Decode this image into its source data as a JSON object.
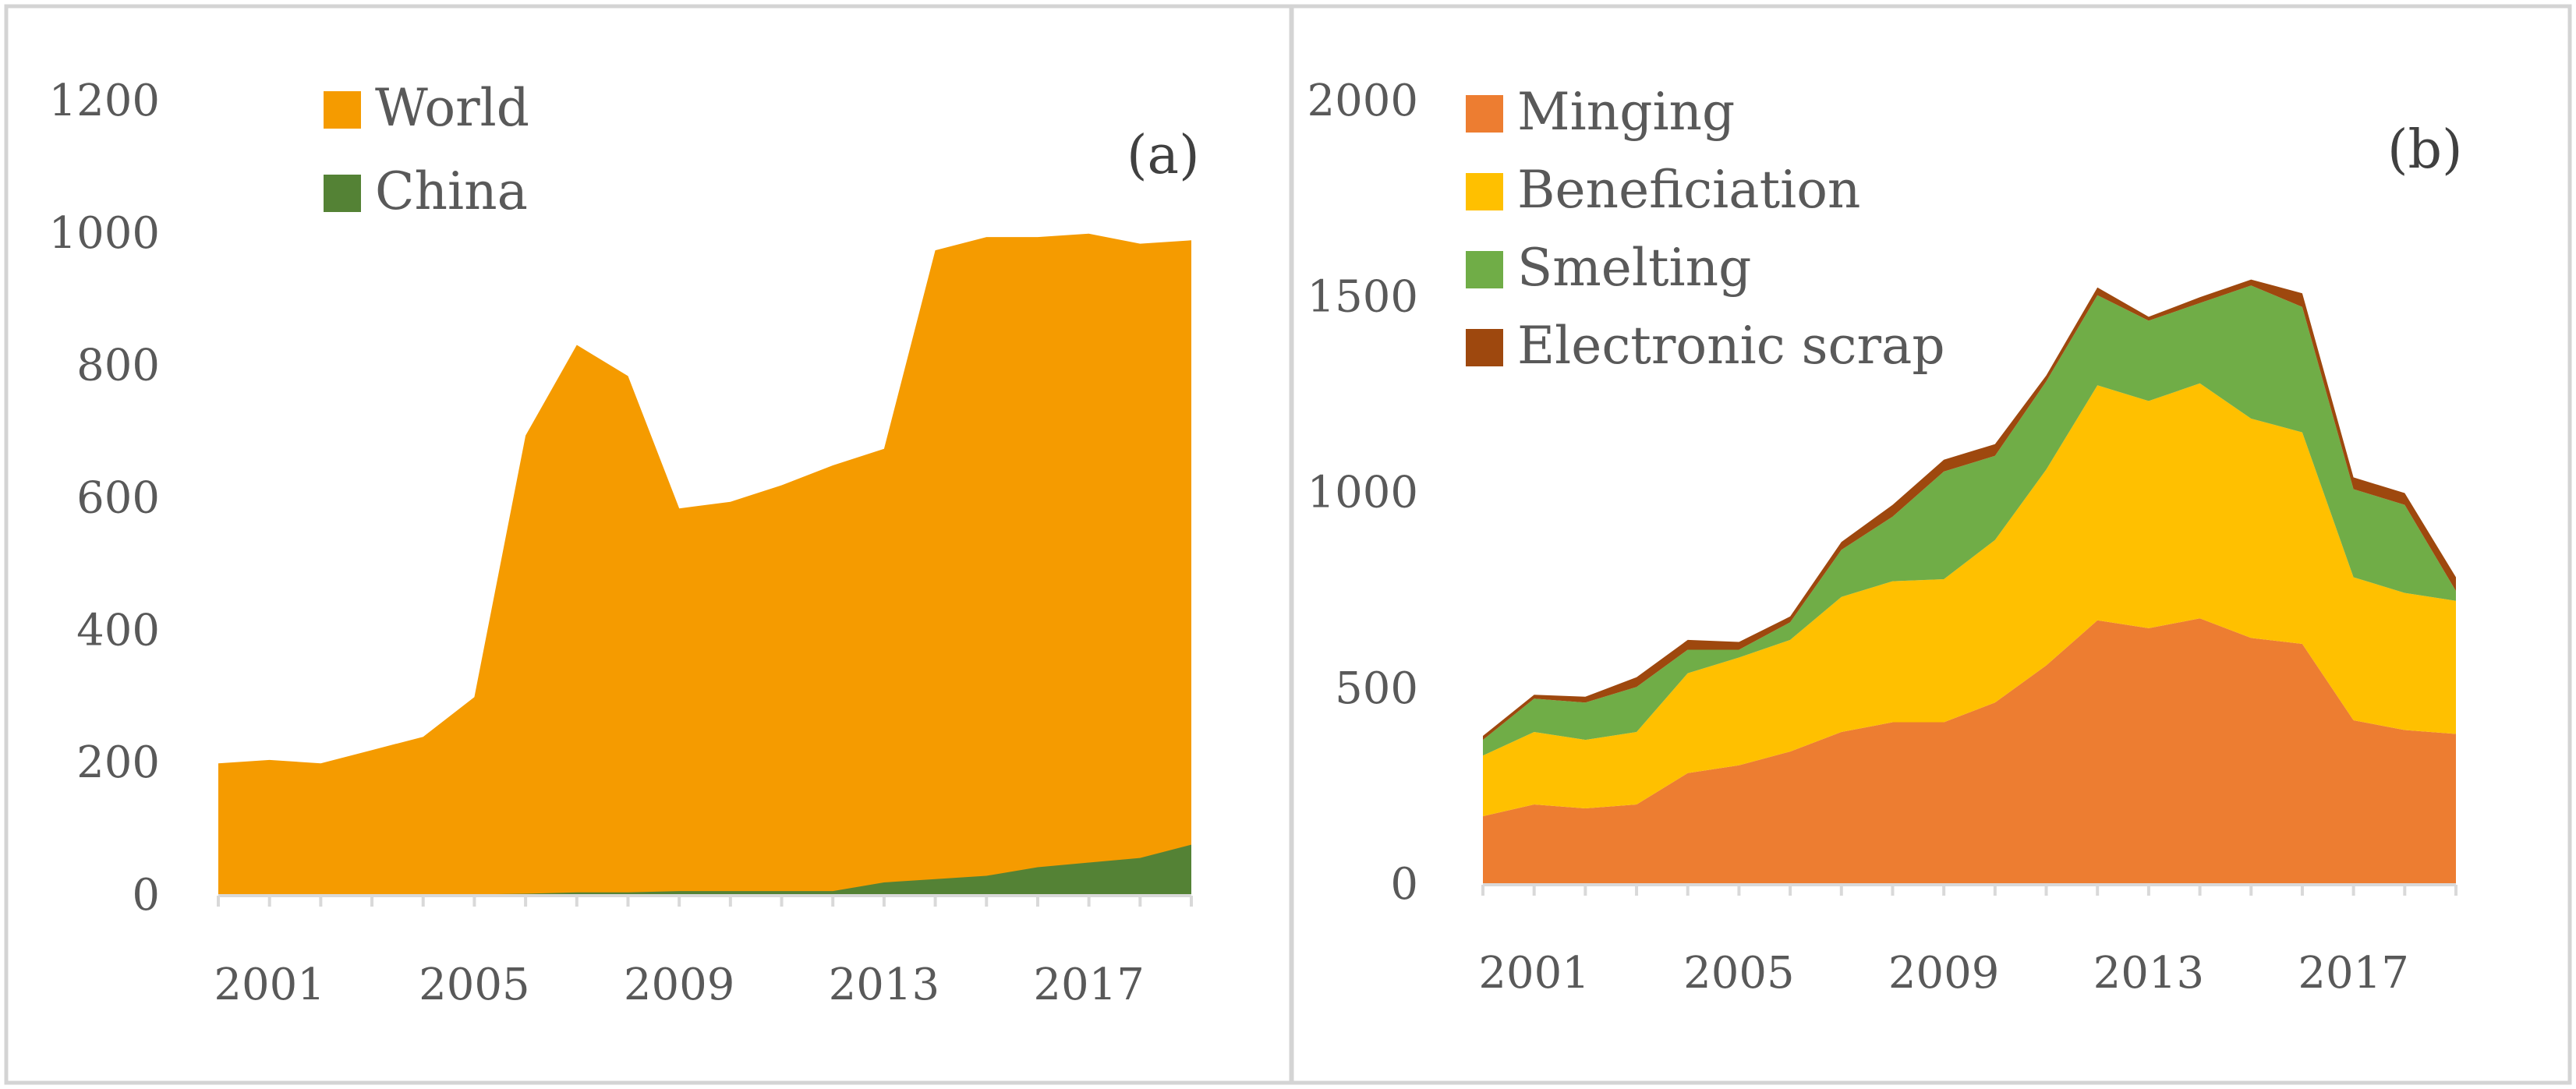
{
  "chart_data": [
    {
      "type": "area",
      "stacking": "overlay",
      "panel_label": "(a)",
      "title": "",
      "xlabel": "",
      "ylabel": "",
      "x": [
        2000,
        2001,
        2002,
        2003,
        2004,
        2005,
        2006,
        2007,
        2008,
        2009,
        2010,
        2011,
        2012,
        2013,
        2014,
        2015,
        2016,
        2017,
        2018,
        2019
      ],
      "ylim": [
        0,
        1200
      ],
      "y_ticks": [
        "0",
        "200",
        "400",
        "600",
        "800",
        "1000",
        "1200"
      ],
      "x_tick_labels": [
        "2001",
        "2005",
        "2009",
        "2013",
        "2017"
      ],
      "legend_position": "top-left",
      "series": [
        {
          "name": "World",
          "color": "#f59b00",
          "values": [
            200,
            205,
            200,
            220,
            240,
            300,
            695,
            832,
            785,
            585,
            595,
            620,
            650,
            675,
            975,
            995,
            995,
            1000,
            985,
            990
          ]
        },
        {
          "name": "China",
          "color": "#548235",
          "values": [
            0,
            0,
            0,
            2,
            2,
            2,
            3,
            5,
            5,
            7,
            7,
            7,
            7,
            20,
            25,
            30,
            43,
            50,
            57,
            77
          ]
        }
      ]
    },
    {
      "type": "area",
      "stacking": "stacked",
      "panel_label": "(b)",
      "title": "",
      "xlabel": "",
      "ylabel": "",
      "x": [
        2000,
        2001,
        2002,
        2003,
        2004,
        2005,
        2006,
        2007,
        2008,
        2009,
        2010,
        2011,
        2012,
        2013,
        2014,
        2015,
        2016,
        2017,
        2018,
        2019
      ],
      "ylim": [
        0,
        2000
      ],
      "y_ticks": [
        "0",
        "500",
        "1000",
        "1500",
        "2000"
      ],
      "x_tick_labels": [
        "2001",
        "2005",
        "2009",
        "2013",
        "2017"
      ],
      "legend_position": "top-left",
      "series": [
        {
          "name": "Minging",
          "color": "#ed7d31",
          "values": [
            175,
            205,
            195,
            205,
            285,
            305,
            340,
            390,
            415,
            415,
            465,
            560,
            675,
            655,
            680,
            630,
            615,
            420,
            395,
            385
          ]
        },
        {
          "name": "Beneficiation",
          "color": "#ffc000",
          "values": [
            155,
            185,
            175,
            185,
            255,
            275,
            285,
            345,
            360,
            365,
            415,
            500,
            600,
            580,
            600,
            560,
            540,
            365,
            350,
            340
          ]
        },
        {
          "name": "Smelting",
          "color": "#70ad47",
          "values": [
            40,
            85,
            95,
            115,
            60,
            20,
            45,
            120,
            165,
            275,
            215,
            225,
            230,
            205,
            205,
            340,
            320,
            225,
            225,
            25
          ]
        },
        {
          "name": "Electronic scrap",
          "color": "#9e480e",
          "values": [
            10,
            10,
            15,
            25,
            25,
            20,
            15,
            20,
            30,
            30,
            30,
            15,
            20,
            10,
            15,
            15,
            35,
            30,
            30,
            35
          ]
        }
      ]
    }
  ]
}
